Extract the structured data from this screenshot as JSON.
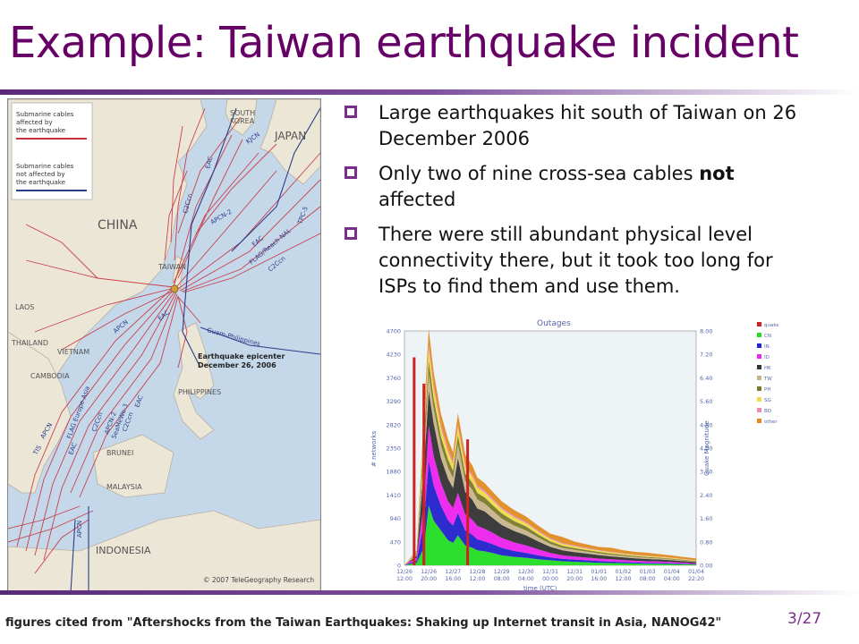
{
  "slide": {
    "title": "Example: Taiwan earthquake incident",
    "page_number": "3/27",
    "footer": "figures cited from \"Aftershocks from the Taiwan Earthquakes: Shaking up Internet transit in Asia, NANOG42\""
  },
  "bullets": [
    {
      "text": "Large earthquakes hit south of Taiwan on 26 December 2006"
    },
    {
      "text_before": "Only two of nine cross-sea cables ",
      "bold": "not",
      "text_after": " affected"
    },
    {
      "text": "There were still abundant physical level connectivity there, but it took too long for ISPs to find them and use them."
    }
  ],
  "map": {
    "legend_affected": [
      "Submarine cables",
      "affected by",
      "the earthquake"
    ],
    "legend_not_affected": [
      "Submarine cables",
      "not affected by",
      "the earthquake"
    ],
    "countries": [
      "SOUTH",
      "KOREA",
      "JAPAN",
      "CHINA",
      "TAIWAN",
      "LAOS",
      "THAILAND",
      "VIETNAM",
      "CAMBODIA",
      "PHILIPPINES",
      "BRUNEI",
      "MALAYSIA",
      "INDONESIA"
    ],
    "cables": [
      "KJCN",
      "EAC",
      "C2Ccn",
      "APCN-2",
      "TPC-5",
      "EAC",
      "FLAG/Reach NAL",
      "C2Ccn",
      "APCN",
      "EAC",
      "Guam-Philippines",
      "FLAG Europe-Asia",
      "APCN-2",
      "SeaMeWe-3",
      "C2Ccn",
      "C2Ccn",
      "EAC",
      "APCN",
      "TIS",
      "EAC",
      "APCN"
    ],
    "epicenter_label": [
      "Earthquake epicenter",
      "December 26, 2006"
    ],
    "copyright": "© 2007 TeleGeography Research",
    "colors": {
      "sea": "#c5d8ea",
      "land": "#ece6d6",
      "affected": "#c8303c",
      "not_affected": "#2c3e88"
    }
  },
  "chart_data": {
    "type": "area",
    "title": "Outages",
    "xlabel": "time (UTC)",
    "ylabel": "# networks",
    "y2label": "Quake Magnitude",
    "ylim": [
      0,
      4700
    ],
    "y2lim": [
      0,
      8.0
    ],
    "yticks": [
      "0",
      "470",
      "940",
      "1410",
      "1880",
      "2350",
      "2820",
      "3290",
      "3760",
      "4230",
      "4700"
    ],
    "y2ticks": [
      "0.00",
      "0.80",
      "1.60",
      "2.40",
      "3.20",
      "4.00",
      "4.80",
      "5.60",
      "6.40",
      "7.20",
      "8.00"
    ],
    "xticks": [
      [
        "12/26",
        "12:00"
      ],
      [
        "12/26",
        "20:00"
      ],
      [
        "12/27",
        "16:00"
      ],
      [
        "12/28",
        "12:00"
      ],
      [
        "12/29",
        "08:00"
      ],
      [
        "12/30",
        "04:00"
      ],
      [
        "12/31",
        "00:00"
      ],
      [
        "12/31",
        "20:00"
      ],
      [
        "01/01",
        "16:00"
      ],
      [
        "01/02",
        "12:00"
      ],
      [
        "01/03",
        "08:00"
      ],
      [
        "01/04",
        "04:00"
      ],
      [
        "01/04",
        "22:20"
      ]
    ],
    "legend": [
      {
        "name": "quake",
        "color": "#cc2222"
      },
      {
        "name": "CN",
        "color": "#22dd22"
      },
      {
        "name": "IN",
        "color": "#2222cc"
      },
      {
        "name": "ID",
        "color": "#ee22ee"
      },
      {
        "name": "HK",
        "color": "#333333"
      },
      {
        "name": "TW",
        "color": "#c8b48c"
      },
      {
        "name": "PH",
        "color": "#7a7a2a"
      },
      {
        "name": "SG",
        "color": "#eedd44"
      },
      {
        "name": "BD",
        "color": "#ee88bb"
      },
      {
        "name": "other",
        "color": "#e08c22"
      }
    ],
    "quake_bars": [
      {
        "x": 0.4,
        "magnitude": 7.1
      },
      {
        "x": 0.8,
        "magnitude": 6.2
      },
      {
        "x": 2.6,
        "magnitude": 4.3
      }
    ],
    "x": [
      0,
      0.5,
      0.8,
      1.0,
      1.2,
      1.5,
      1.8,
      2.0,
      2.2,
      2.5,
      2.8,
      3.0,
      3.3,
      3.6,
      4.0,
      4.5,
      5.0,
      5.5,
      6.0,
      6.5,
      7.0,
      7.5,
      8.0,
      8.5,
      9.0,
      9.5,
      10.0,
      10.5,
      11.0,
      11.5,
      12.0
    ],
    "series": [
      {
        "name": "CN",
        "values": [
          0,
          50,
          350,
          1200,
          900,
          700,
          500,
          450,
          600,
          400,
          350,
          300,
          280,
          250,
          200,
          170,
          150,
          120,
          100,
          80,
          70,
          60,
          50,
          45,
          40,
          35,
          30,
          30,
          25,
          20,
          15
        ]
      },
      {
        "name": "IN",
        "values": [
          0,
          40,
          500,
          900,
          700,
          500,
          400,
          350,
          450,
          300,
          260,
          220,
          200,
          180,
          150,
          120,
          100,
          80,
          60,
          50,
          45,
          40,
          35,
          30,
          25,
          20,
          20,
          18,
          15,
          12,
          10
        ]
      },
      {
        "name": "ID",
        "values": [
          0,
          60,
          400,
          700,
          600,
          450,
          380,
          350,
          400,
          320,
          300,
          270,
          250,
          230,
          200,
          170,
          150,
          120,
          90,
          70,
          60,
          55,
          50,
          45,
          40,
          35,
          30,
          28,
          25,
          20,
          15
        ]
      },
      {
        "name": "HK",
        "values": [
          0,
          40,
          700,
          700,
          650,
          500,
          450,
          400,
          700,
          450,
          400,
          350,
          350,
          300,
          260,
          230,
          200,
          160,
          120,
          100,
          90,
          80,
          70,
          60,
          55,
          50,
          45,
          40,
          35,
          30,
          25
        ]
      },
      {
        "name": "TW",
        "values": [
          0,
          30,
          300,
          350,
          300,
          250,
          220,
          200,
          280,
          220,
          200,
          180,
          160,
          150,
          130,
          110,
          100,
          80,
          60,
          50,
          45,
          40,
          35,
          30,
          28,
          25,
          22,
          20,
          18,
          15,
          12
        ]
      },
      {
        "name": "PH",
        "values": [
          0,
          20,
          300,
          250,
          200,
          180,
          160,
          150,
          180,
          150,
          140,
          130,
          120,
          110,
          100,
          90,
          80,
          60,
          50,
          40,
          35,
          30,
          28,
          25,
          22,
          20,
          18,
          16,
          14,
          12,
          10
        ]
      },
      {
        "name": "SG",
        "values": [
          0,
          20,
          200,
          250,
          200,
          170,
          150,
          130,
          160,
          130,
          120,
          110,
          100,
          95,
          85,
          75,
          65,
          55,
          45,
          40,
          35,
          30,
          28,
          25,
          22,
          20,
          18,
          16,
          14,
          12,
          10
        ]
      },
      {
        "name": "BD",
        "values": [
          0,
          10,
          80,
          90,
          80,
          70,
          60,
          55,
          60,
          50,
          45,
          40,
          38,
          35,
          30,
          28,
          25,
          22,
          20,
          18,
          16,
          14,
          12,
          11,
          10,
          9,
          8,
          7,
          6,
          5,
          4
        ]
      },
      {
        "name": "other",
        "values": [
          0,
          30,
          200,
          300,
          250,
          220,
          200,
          180,
          220,
          200,
          180,
          160,
          150,
          140,
          130,
          120,
          110,
          100,
          90,
          120,
          80,
          70,
          60,
          80,
          60,
          55,
          60,
          50,
          45,
          40,
          35
        ]
      }
    ]
  }
}
